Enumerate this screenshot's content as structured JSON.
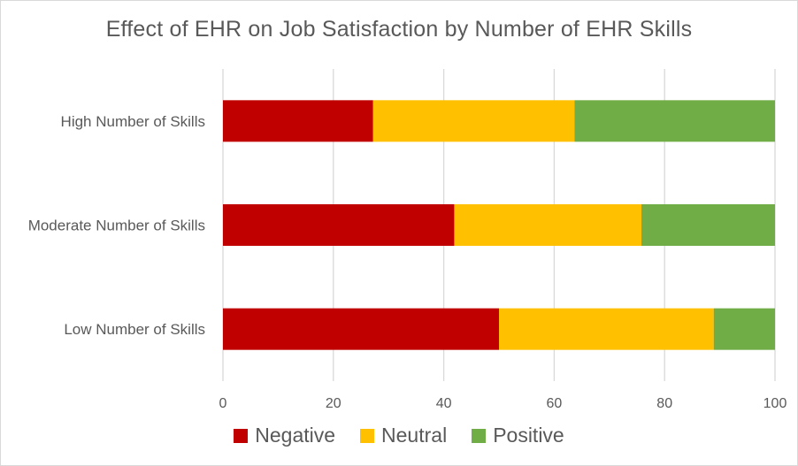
{
  "colors": {
    "negative": "#c00000",
    "neutral": "#ffc000",
    "positive": "#70ad47",
    "gridline": "#d9d9d9",
    "text": "#595959"
  },
  "chart_data": {
    "type": "bar",
    "orientation": "horizontal",
    "stacked": true,
    "title": "Effect of EHR on Job Satisfaction by Number of EHR Skills",
    "categories": [
      "High Number of Skills",
      "Moderate Number of Skills",
      "Low Number of Skills"
    ],
    "series": [
      {
        "name": "Negative",
        "color": "#c00000",
        "values": [
          27.2,
          41.9,
          50.0
        ]
      },
      {
        "name": "Neutral",
        "color": "#ffc000",
        "values": [
          36.5,
          33.9,
          38.9
        ]
      },
      {
        "name": "Positive",
        "color": "#70ad47",
        "values": [
          36.3,
          24.2,
          11.1
        ]
      }
    ],
    "xlim": [
      0,
      100
    ],
    "xticks": [
      0,
      20,
      40,
      60,
      80,
      100
    ],
    "grid": "vertical",
    "legend_position": "bottom"
  }
}
